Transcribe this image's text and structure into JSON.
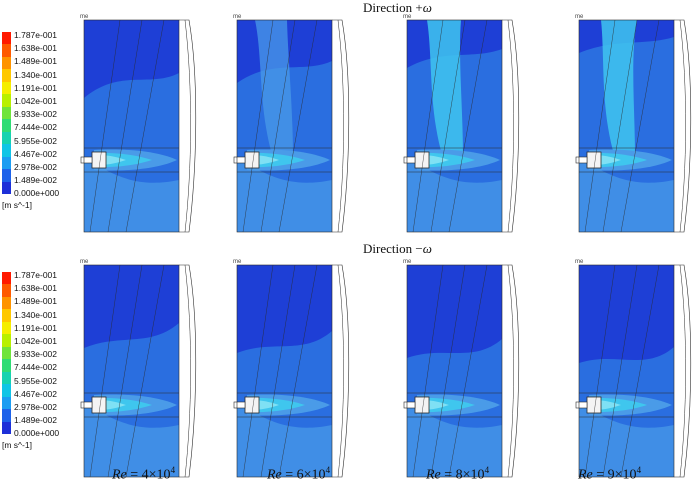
{
  "rows": [
    {
      "title_prefix": "Direction +",
      "title_symbol": "ω"
    },
    {
      "title_prefix": "Direction −",
      "title_symbol": "ω"
    }
  ],
  "legend": {
    "ticks": [
      "1.787e-001",
      "1.638e-001",
      "1.489e-001",
      "1.340e-001",
      "1.191e-001",
      "1.042e-001",
      "8.933e-002",
      "7.444e-002",
      "5.955e-002",
      "4.467e-002",
      "2.978e-002",
      "1.489e-002",
      "0.000e+000"
    ],
    "unit": "[m s^-1]",
    "colors": [
      "#ff1a00",
      "#ff5a00",
      "#ff9400",
      "#ffc800",
      "#f5ee00",
      "#b8f000",
      "#6fe43a",
      "#2fdc74",
      "#17d3b0",
      "#10c5e6",
      "#1b9df2",
      "#1d62ea",
      "#1d2fd8"
    ]
  },
  "panel_tag": "me",
  "cases": [
    {
      "re_label": "Re",
      "eq": " = 4×10",
      "exp": "4"
    },
    {
      "re_label": "Re",
      "eq": " = 6×10",
      "exp": "4"
    },
    {
      "re_label": "Re",
      "eq": " = 8×10",
      "exp": "4"
    },
    {
      "re_label": "Re",
      "eq": " = 9×10",
      "exp": "4"
    }
  ],
  "colors": {
    "dark_blue": "#1e3fd6",
    "mid_blue": "#2a6ee0",
    "light_blue": "#4a9be8",
    "cyan": "#3fc6ee",
    "pale_cyan": "#7fe0f4",
    "outline": "#2b2b2b"
  }
}
